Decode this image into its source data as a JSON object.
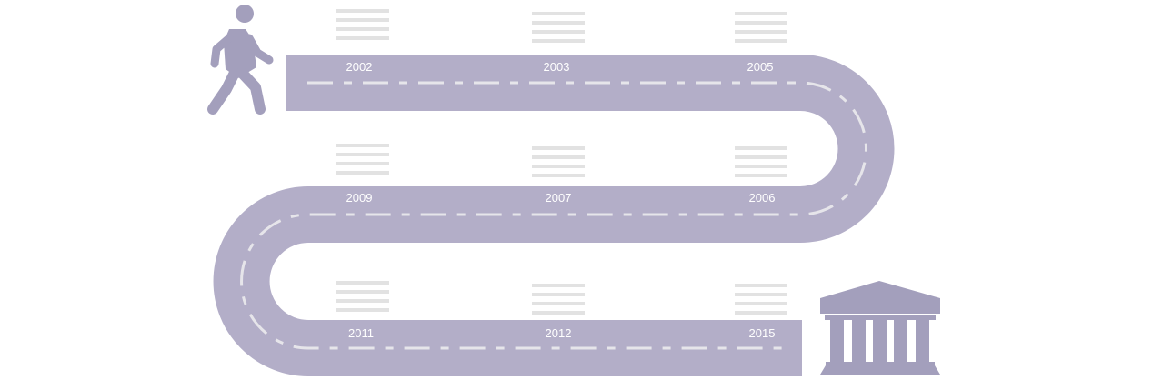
{
  "colors": {
    "road": "#b3aec8",
    "dash": "#e6e5ea",
    "icon": "#a39fbc",
    "placeholder_lines": "#e2e2e2",
    "label": "#ffffff"
  },
  "icons": {
    "start": "walking-person-icon",
    "end": "bank-building-icon"
  },
  "milestones": {
    "m1": "2002",
    "m2": "2003",
    "m3": "2005",
    "m4": "2006",
    "m5": "2007",
    "m6": "2009",
    "m7": "2011",
    "m8": "2012",
    "m9": "2015"
  }
}
